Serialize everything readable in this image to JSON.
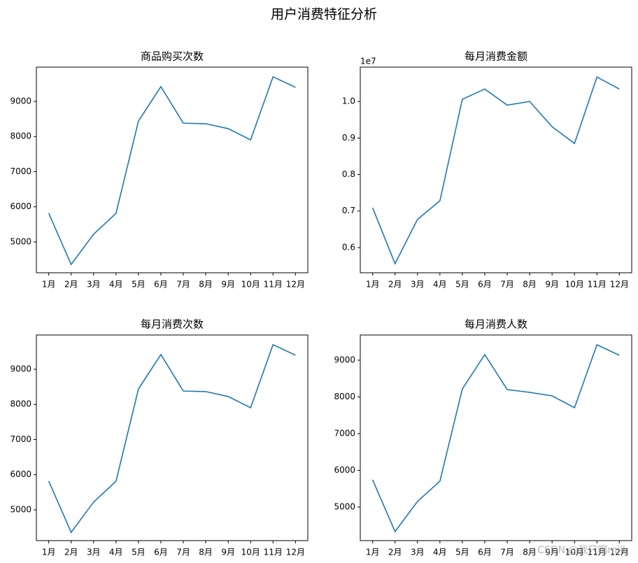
{
  "title": "用户消费特征分析",
  "watermark": "CSDN @我只喝milk",
  "chart_data": [
    {
      "type": "line",
      "title": "商品购买次数",
      "categories": [
        "1月",
        "2月",
        "3月",
        "4月",
        "5月",
        "6月",
        "7月",
        "8月",
        "9月",
        "10月",
        "11月",
        "12月"
      ],
      "values": [
        5820,
        4360,
        5220,
        5815,
        8440,
        9420,
        8380,
        8365,
        8225,
        7905,
        9700,
        9400
      ],
      "color": "#1f77b4",
      "ylim": [
        4124,
        9975
      ],
      "yticks": [
        5000,
        6000,
        7000,
        8000,
        9000
      ]
    },
    {
      "type": "line",
      "title": "每月消费金额",
      "offset_label": "1e7",
      "categories": [
        "1月",
        "2月",
        "3月",
        "4月",
        "5月",
        "6月",
        "7月",
        "8月",
        "9月",
        "10月",
        "11月",
        "12月"
      ],
      "values": [
        7090000,
        5560000,
        6770000,
        7280000,
        10060000,
        10340000,
        9900000,
        10000000,
        9310000,
        8850000,
        10670000,
        10340000
      ],
      "color": "#1f77b4",
      "ylim": [
        5310000,
        10940000
      ],
      "yticks": [
        {
          "value": 6000000,
          "label": "0.6"
        },
        {
          "value": 7000000,
          "label": "0.7"
        },
        {
          "value": 8000000,
          "label": "0.8"
        },
        {
          "value": 9000000,
          "label": "0.9"
        },
        {
          "value": 10000000,
          "label": "1.0"
        }
      ]
    },
    {
      "type": "line",
      "title": "每月消费次数",
      "categories": [
        "1月",
        "2月",
        "3月",
        "4月",
        "5月",
        "6月",
        "7月",
        "8月",
        "9月",
        "10月",
        "11月",
        "12月"
      ],
      "values": [
        5820,
        4360,
        5220,
        5815,
        8440,
        9420,
        8380,
        8365,
        8225,
        7905,
        9700,
        9400
      ],
      "color": "#1f77b4",
      "ylim": [
        4124,
        9975
      ],
      "yticks": [
        5000,
        6000,
        7000,
        8000,
        9000
      ]
    },
    {
      "type": "line",
      "title": "每月消费人数",
      "categories": [
        "1月",
        "2月",
        "3月",
        "4月",
        "5月",
        "6月",
        "7月",
        "8月",
        "9月",
        "10月",
        "11月",
        "12月"
      ],
      "values": [
        5743,
        4333,
        5152,
        5705,
        8219,
        9152,
        8200,
        8124,
        8029,
        7705,
        9419,
        9133
      ],
      "color": "#1f77b4",
      "ylim": [
        4086,
        9686
      ],
      "yticks": [
        5000,
        6000,
        7000,
        8000,
        9000
      ]
    }
  ]
}
